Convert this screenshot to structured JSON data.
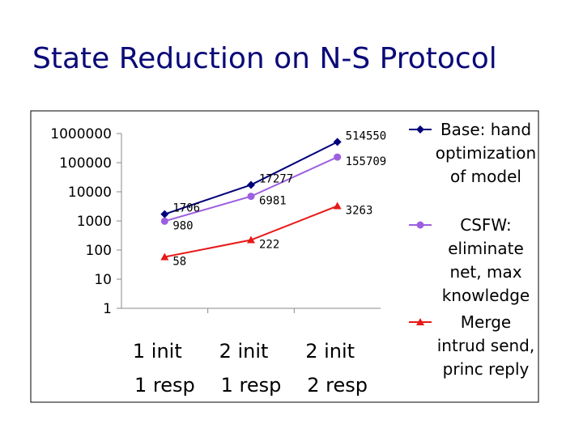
{
  "title": "State Reduction on N-S Protocol",
  "chart_data": {
    "type": "line",
    "yscale": "log",
    "ylim": [
      1,
      1000000
    ],
    "y_ticks": [
      "1",
      "10",
      "100",
      "1000",
      "10000",
      "100000",
      "1000000"
    ],
    "categories": [
      [
        "1 init",
        "1 resp"
      ],
      [
        "2 init",
        "1 resp"
      ],
      [
        "2 init",
        "2 resp"
      ]
    ],
    "grid": false,
    "legend_position": "right",
    "series": [
      {
        "name": "Base: hand optimization of model",
        "legend_lines": [
          "Base: hand",
          "optimization",
          "of model"
        ],
        "color": "#00007a",
        "marker": "diamond",
        "values": [
          1706,
          17277,
          514550
        ]
      },
      {
        "name": "CSFW: eliminate net, max knowledge",
        "legend_lines": [
          "CSFW:",
          "eliminate",
          "net, max",
          "knowledge"
        ],
        "color": "#9d5fe0",
        "marker": "circle",
        "values": [
          980,
          6981,
          155709
        ]
      },
      {
        "name": "Merge intrud send, princ reply",
        "legend_lines": [
          "Merge",
          "intrud send,",
          "princ reply"
        ],
        "color": "#e81818",
        "marker": "triangle",
        "values": [
          58,
          222,
          3263
        ]
      }
    ]
  }
}
